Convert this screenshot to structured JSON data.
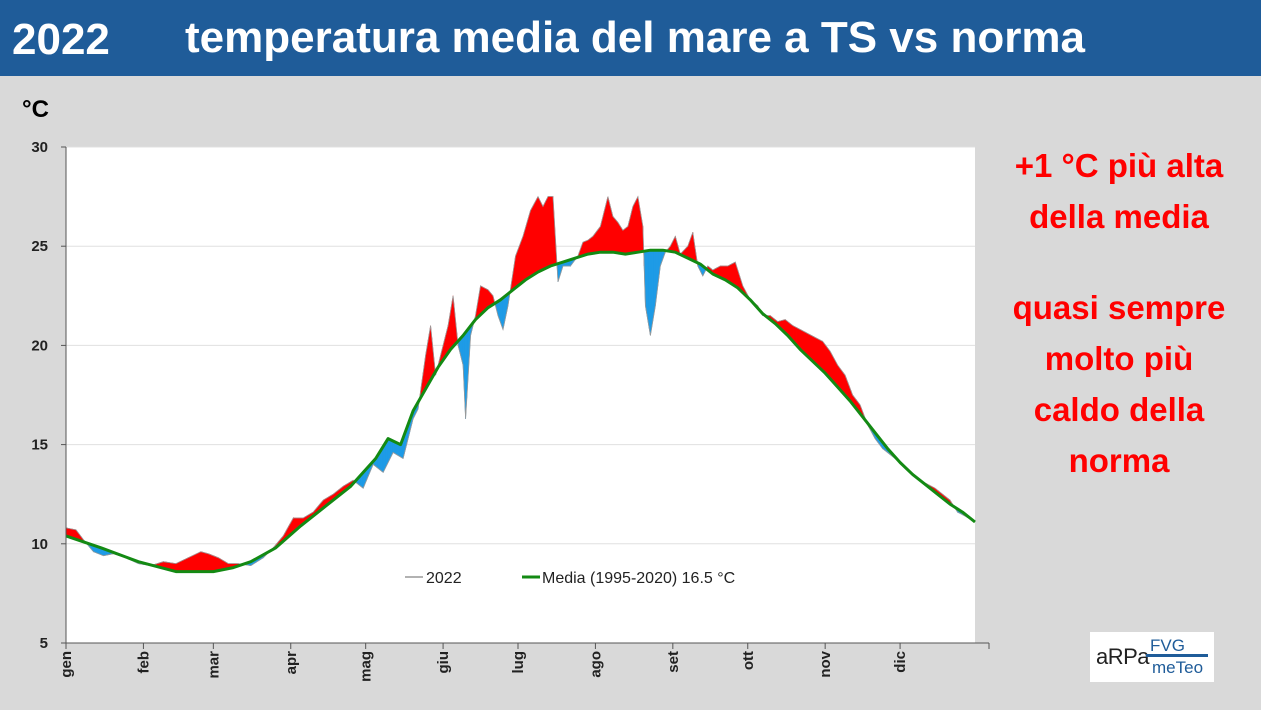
{
  "header": {
    "year": "2022",
    "title": "temperatura media del mare a TS vs norma"
  },
  "unit_label": "°C",
  "side_note": {
    "line1": "+1 °C più alta della media",
    "line2": "quasi sempre molto più caldo della norma"
  },
  "logo": {
    "arpa": "aRPa",
    "fvg": "FVG",
    "meteo": "meTeo"
  },
  "colors": {
    "header_bg": "#1f5c99",
    "warmer_fill": "#ff0000",
    "cooler_fill": "#1e9be6",
    "norm_line": "#138a13",
    "highlight_text": "#ff0000"
  },
  "chart_data": {
    "type": "area",
    "x_label": "",
    "ylim": [
      5,
      30
    ],
    "yticks": [
      5,
      10,
      15,
      20,
      25,
      30
    ],
    "months": [
      "gen",
      "feb",
      "mar",
      "apr",
      "mag",
      "giu",
      "lug",
      "ago",
      "set",
      "ott",
      "nov",
      "dic"
    ],
    "xlim_days": [
      1,
      365
    ],
    "grid": "horizontal",
    "legend": "inside-bottom",
    "series": [
      {
        "name": "2022",
        "color": "#999999",
        "points": [
          [
            1,
            10.8
          ],
          [
            5,
            10.7
          ],
          [
            8,
            10.2
          ],
          [
            12,
            9.6
          ],
          [
            16,
            9.4
          ],
          [
            20,
            9.5
          ],
          [
            25,
            9.3
          ],
          [
            30,
            9.0
          ],
          [
            35,
            8.9
          ],
          [
            40,
            9.1
          ],
          [
            45,
            9.0
          ],
          [
            50,
            9.3
          ],
          [
            55,
            9.6
          ],
          [
            58,
            9.5
          ],
          [
            62,
            9.3
          ],
          [
            66,
            9.0
          ],
          [
            70,
            9.0
          ],
          [
            75,
            8.9
          ],
          [
            80,
            9.3
          ],
          [
            84,
            9.8
          ],
          [
            88,
            10.4
          ],
          [
            92,
            11.3
          ],
          [
            96,
            11.3
          ],
          [
            100,
            11.6
          ],
          [
            104,
            12.2
          ],
          [
            108,
            12.5
          ],
          [
            112,
            12.9
          ],
          [
            116,
            13.2
          ],
          [
            120,
            12.8
          ],
          [
            124,
            14.0
          ],
          [
            128,
            13.6
          ],
          [
            132,
            14.6
          ],
          [
            136,
            14.3
          ],
          [
            140,
            16.3
          ],
          [
            142,
            16.8
          ],
          [
            145,
            19.5
          ],
          [
            147,
            21.0
          ],
          [
            149,
            18.5
          ],
          [
            152,
            20.0
          ],
          [
            154,
            21.0
          ],
          [
            156,
            22.5
          ],
          [
            158,
            20.0
          ],
          [
            160,
            19.0
          ],
          [
            161,
            16.3
          ],
          [
            163,
            20.5
          ],
          [
            165,
            21.5
          ],
          [
            167,
            23.0
          ],
          [
            170,
            22.8
          ],
          [
            172,
            22.5
          ],
          [
            174,
            21.5
          ],
          [
            176,
            20.8
          ],
          [
            178,
            22.0
          ],
          [
            181,
            24.5
          ],
          [
            184,
            25.5
          ],
          [
            187,
            26.8
          ],
          [
            190,
            27.5
          ],
          [
            192,
            27.0
          ],
          [
            194,
            27.5
          ],
          [
            196,
            27.5
          ],
          [
            198,
            23.2
          ],
          [
            200,
            24.0
          ],
          [
            203,
            24.0
          ],
          [
            206,
            24.5
          ],
          [
            208,
            25.2
          ],
          [
            210,
            25.3
          ],
          [
            212,
            25.5
          ],
          [
            215,
            26.0
          ],
          [
            218,
            27.5
          ],
          [
            220,
            26.5
          ],
          [
            222,
            26.2
          ],
          [
            224,
            25.8
          ],
          [
            226,
            26.0
          ],
          [
            228,
            27.0
          ],
          [
            230,
            27.5
          ],
          [
            232,
            26.0
          ],
          [
            233,
            22.0
          ],
          [
            235,
            20.5
          ],
          [
            237,
            22.0
          ],
          [
            239,
            24.0
          ],
          [
            241,
            24.7
          ],
          [
            243,
            25.0
          ],
          [
            245,
            25.5
          ],
          [
            247,
            24.6
          ],
          [
            250,
            25.0
          ],
          [
            252,
            25.7
          ],
          [
            254,
            24.0
          ],
          [
            256,
            23.5
          ],
          [
            258,
            24.0
          ],
          [
            260,
            23.8
          ],
          [
            263,
            24.0
          ],
          [
            266,
            24.0
          ],
          [
            269,
            24.2
          ],
          [
            272,
            23.0
          ],
          [
            275,
            22.3
          ],
          [
            278,
            22.0
          ],
          [
            280,
            21.5
          ],
          [
            283,
            21.5
          ],
          [
            286,
            21.2
          ],
          [
            289,
            21.3
          ],
          [
            292,
            21.0
          ],
          [
            295,
            20.8
          ],
          [
            298,
            20.6
          ],
          [
            301,
            20.4
          ],
          [
            304,
            20.2
          ],
          [
            307,
            19.7
          ],
          [
            310,
            19.0
          ],
          [
            313,
            18.5
          ],
          [
            316,
            17.5
          ],
          [
            319,
            17.0
          ],
          [
            322,
            16.0
          ],
          [
            325,
            15.3
          ],
          [
            328,
            14.8
          ],
          [
            331,
            14.5
          ],
          [
            334,
            14.2
          ],
          [
            337,
            13.8
          ],
          [
            340,
            13.5
          ],
          [
            343,
            13.2
          ],
          [
            346,
            13.0
          ],
          [
            349,
            12.8
          ],
          [
            352,
            12.5
          ],
          [
            355,
            12.2
          ],
          [
            358,
            11.6
          ],
          [
            361,
            11.4
          ],
          [
            365,
            11.1
          ]
        ]
      },
      {
        "name": "Media (1995-2020) 16.5 °C",
        "color": "#138a13",
        "points": [
          [
            1,
            10.4
          ],
          [
            15,
            9.8
          ],
          [
            30,
            9.1
          ],
          [
            45,
            8.6
          ],
          [
            60,
            8.6
          ],
          [
            68,
            8.8
          ],
          [
            75,
            9.1
          ],
          [
            85,
            9.8
          ],
          [
            95,
            10.9
          ],
          [
            105,
            11.9
          ],
          [
            115,
            12.9
          ],
          [
            125,
            14.3
          ],
          [
            130,
            15.3
          ],
          [
            135,
            15.0
          ],
          [
            140,
            16.7
          ],
          [
            145,
            17.8
          ],
          [
            150,
            18.9
          ],
          [
            155,
            19.8
          ],
          [
            160,
            20.5
          ],
          [
            165,
            21.3
          ],
          [
            170,
            21.9
          ],
          [
            175,
            22.3
          ],
          [
            180,
            22.8
          ],
          [
            185,
            23.3
          ],
          [
            190,
            23.7
          ],
          [
            195,
            24.0
          ],
          [
            200,
            24.2
          ],
          [
            205,
            24.4
          ],
          [
            210,
            24.6
          ],
          [
            215,
            24.7
          ],
          [
            220,
            24.7
          ],
          [
            225,
            24.6
          ],
          [
            230,
            24.7
          ],
          [
            235,
            24.8
          ],
          [
            240,
            24.8
          ],
          [
            245,
            24.7
          ],
          [
            250,
            24.4
          ],
          [
            255,
            24.1
          ],
          [
            260,
            23.6
          ],
          [
            265,
            23.3
          ],
          [
            270,
            22.9
          ],
          [
            275,
            22.3
          ],
          [
            280,
            21.6
          ],
          [
            285,
            21.1
          ],
          [
            290,
            20.5
          ],
          [
            295,
            19.8
          ],
          [
            300,
            19.2
          ],
          [
            305,
            18.6
          ],
          [
            310,
            17.9
          ],
          [
            315,
            17.2
          ],
          [
            320,
            16.4
          ],
          [
            325,
            15.6
          ],
          [
            330,
            14.8
          ],
          [
            335,
            14.1
          ],
          [
            340,
            13.5
          ],
          [
            345,
            13.0
          ],
          [
            350,
            12.5
          ],
          [
            355,
            12.0
          ],
          [
            360,
            11.6
          ],
          [
            365,
            11.1
          ]
        ]
      }
    ]
  }
}
